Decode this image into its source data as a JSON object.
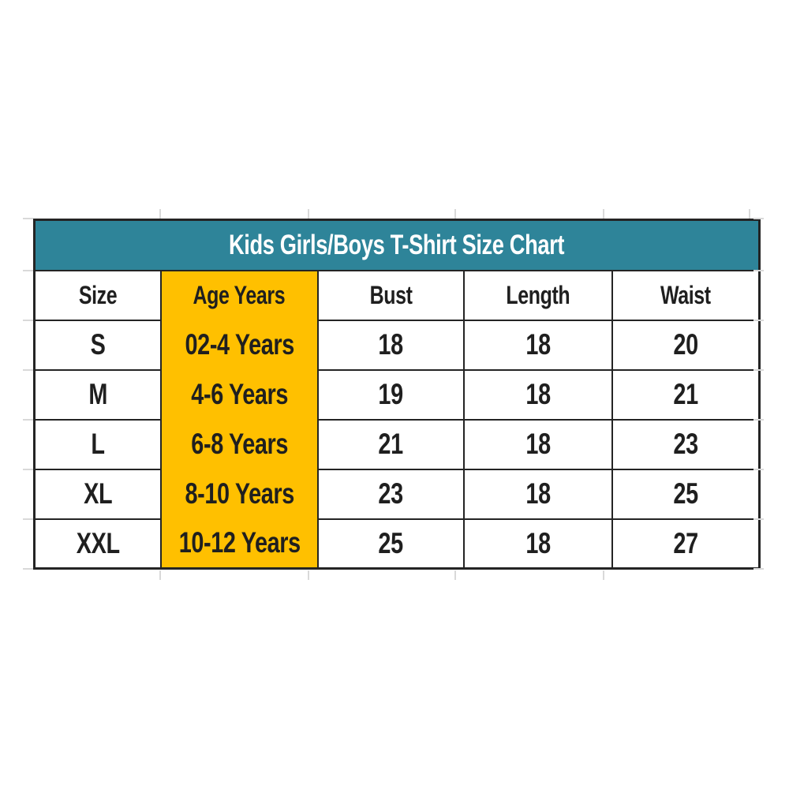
{
  "colors": {
    "page_bg": "#FFFFFF",
    "title_bg": "#2E8499",
    "title_text": "#FFFFFF",
    "highlight": "#FFC000",
    "border": "#242424",
    "text": "#1F1F1F",
    "gridline": "#D9D9D9"
  },
  "chart_data": {
    "type": "table",
    "title": "Kids Girls/Boys T-Shirt Size Chart",
    "columns": [
      "Size",
      "Age Years",
      "Bust",
      "Length",
      "Waist"
    ],
    "highlighted_column": "Age Years",
    "highlighted_column_index": 1,
    "rows": [
      [
        "S",
        "02-4 Years",
        "18",
        "18",
        "20"
      ],
      [
        "M",
        "4-6 Years",
        "19",
        "18",
        "21"
      ],
      [
        "L",
        "6-8 Years",
        "21",
        "18",
        "23"
      ],
      [
        "XL",
        "8-10 Years",
        "23",
        "18",
        "25"
      ],
      [
        "XXL",
        "10-12 Years",
        "25",
        "18",
        "27"
      ]
    ],
    "layout_hints": {
      "title_row_style": "teal band, white bold text, spans all columns",
      "age_column_style": "solid gold band, no horizontal dividers",
      "grid": "black cell borders; faint gray spreadsheet gridline stubs outside table"
    }
  }
}
